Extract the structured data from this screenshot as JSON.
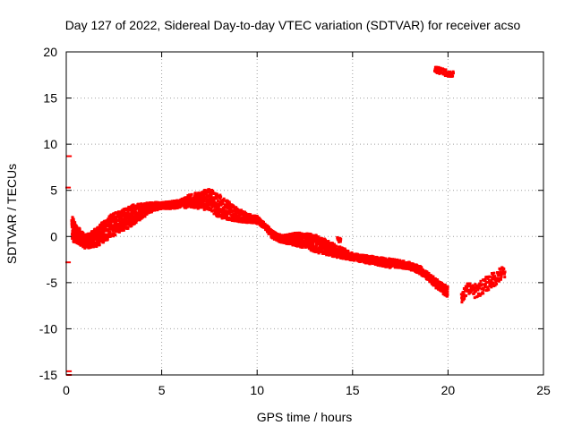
{
  "chart_data": {
    "type": "scatter",
    "title": "Day 127 of 2022, Sidereal Day-to-day VTEC variation (SDTVAR) for receiver acso",
    "xlabel": "GPS time / hours",
    "ylabel": "SDTVAR / TECUs",
    "xlim": [
      0,
      25
    ],
    "ylim": [
      -15,
      20
    ],
    "x_ticks": [
      0,
      5,
      10,
      15,
      20,
      25
    ],
    "y_ticks": [
      -15,
      -10,
      -5,
      0,
      5,
      10,
      15,
      20
    ],
    "x_tick_labels": [
      "0",
      "5",
      "10",
      "15",
      "20",
      "25"
    ],
    "y_tick_labels": [
      "-15",
      "-10",
      "-5",
      "0",
      "5",
      "10",
      "15",
      "20"
    ],
    "grid": true,
    "series": [
      {
        "name": "SDTVAR",
        "color": "#ff0000",
        "band": [
          [
            0.3,
            2.3,
            -0.5
          ],
          [
            0.5,
            1.3,
            -0.7
          ],
          [
            0.8,
            0.6,
            -1.0
          ],
          [
            1.0,
            0.2,
            -1.3
          ],
          [
            1.3,
            0.5,
            -1.2
          ],
          [
            1.6,
            1.0,
            -1.1
          ],
          [
            2.0,
            1.8,
            -0.6
          ],
          [
            2.4,
            2.4,
            -0.1
          ],
          [
            2.8,
            2.8,
            0.4
          ],
          [
            3.2,
            3.2,
            0.8
          ],
          [
            3.6,
            3.5,
            1.4
          ],
          [
            4.0,
            3.6,
            2.0
          ],
          [
            4.5,
            3.7,
            2.7
          ],
          [
            5.0,
            3.7,
            3.0
          ],
          [
            5.5,
            3.8,
            3.0
          ],
          [
            6.0,
            4.0,
            3.1
          ],
          [
            6.5,
            4.6,
            3.1
          ],
          [
            7.0,
            4.8,
            3.0
          ],
          [
            7.5,
            5.2,
            2.8
          ],
          [
            8.0,
            4.6,
            2.0
          ],
          [
            8.5,
            3.8,
            1.8
          ],
          [
            9.0,
            3.0,
            1.6
          ],
          [
            9.5,
            2.5,
            1.5
          ],
          [
            10.0,
            2.2,
            1.4
          ],
          [
            10.4,
            1.4,
            0.9
          ],
          [
            10.8,
            0.6,
            -0.2
          ],
          [
            11.2,
            0.2,
            -0.6
          ],
          [
            11.6,
            0.2,
            -0.8
          ],
          [
            12.0,
            0.4,
            -1.0
          ],
          [
            12.4,
            0.4,
            -1.2
          ],
          [
            12.8,
            0.3,
            -1.5
          ],
          [
            13.2,
            0.1,
            -1.8
          ],
          [
            13.6,
            -0.3,
            -2.0
          ],
          [
            14.0,
            -0.8,
            -2.2
          ],
          [
            14.5,
            -1.2,
            -2.4
          ],
          [
            15.0,
            -1.8,
            -2.6
          ],
          [
            15.5,
            -2.0,
            -2.8
          ],
          [
            16.0,
            -2.1,
            -3.0
          ],
          [
            16.5,
            -2.3,
            -3.2
          ],
          [
            17.0,
            -2.4,
            -3.4
          ],
          [
            17.5,
            -2.6,
            -3.4
          ],
          [
            18.0,
            -2.8,
            -3.6
          ],
          [
            18.5,
            -3.2,
            -4.0
          ],
          [
            19.0,
            -4.0,
            -4.8
          ],
          [
            19.5,
            -4.8,
            -5.8
          ],
          [
            20.0,
            -5.4,
            -6.6
          ]
        ],
        "clusters": [
          {
            "label": "high",
            "x": [
              19.3,
              20.3
            ],
            "y": [
              17.5,
              18.2
            ]
          },
          {
            "label": "dip",
            "x": [
              20.7,
              21.4
            ],
            "y": [
              -7.3,
              -5.8
            ]
          },
          {
            "label": "recovery",
            "x": [
              21.4,
              23.0
            ],
            "y": [
              -6.6,
              -3.7
            ]
          },
          {
            "label": "spot",
            "x": [
              14.2,
              14.4
            ],
            "y": [
              -0.6,
              -0.1
            ]
          }
        ],
        "edge_points": [
          {
            "x": 0.1,
            "y": 8.7
          },
          {
            "x": 0.05,
            "y": 5.3
          },
          {
            "x": 0.05,
            "y": -2.8
          },
          {
            "x": 0.1,
            "y": -14.6
          },
          {
            "x": 0.1,
            "y": -15.0
          }
        ]
      }
    ]
  }
}
